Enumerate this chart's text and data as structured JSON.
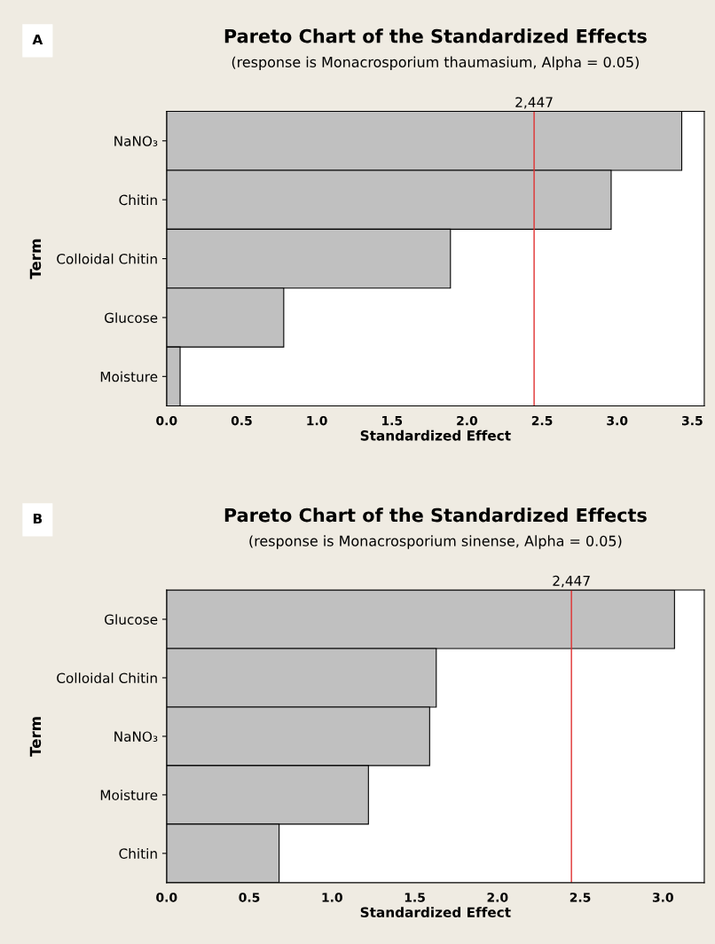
{
  "chart_data": [
    {
      "type": "bar",
      "orientation": "horizontal",
      "title": "Pareto Chart of the Standardized Effects",
      "subtitle": "(response is Monacrosporium thaumasium, Alpha = 0.05)",
      "annotations": [
        "A"
      ],
      "xlabel": "Standardized Effect",
      "ylabel": "Term",
      "categories": [
        "NaNO₃",
        "Chitin",
        "Colloidal Chitin",
        "Glucose",
        "Moisture"
      ],
      "series": [
        {
          "color": "#c0c0c0",
          "values": [
            3.43,
            2.96,
            1.89,
            0.78,
            0.09
          ]
        }
      ],
      "xlim": [
        0,
        3.58
      ],
      "xticks": [
        {
          "value": 0,
          "label": "0.0"
        },
        {
          "value": 0.5,
          "label": "0.5"
        },
        {
          "value": 1,
          "label": "1.0"
        },
        {
          "value": 1.5,
          "label": "1.5"
        },
        {
          "value": 2,
          "label": "2.0"
        },
        {
          "value": 2.5,
          "label": "2.5"
        },
        {
          "value": 3,
          "label": "3.0"
        },
        {
          "value": 3.5,
          "label": "3.5"
        }
      ],
      "ref_lines": [
        {
          "axis": "x",
          "value": 2.447,
          "label": "2,447",
          "color": "#e03030"
        }
      ],
      "grid": false,
      "legend": false
    },
    {
      "type": "bar",
      "orientation": "horizontal",
      "title": "Pareto Chart of the Standardized Effects",
      "subtitle": "(response is Monacrosporium sinense, Alpha = 0.05)",
      "annotations": [
        "B"
      ],
      "xlabel": "Standardized Effect",
      "ylabel": "Term",
      "categories": [
        "Glucose",
        "Colloidal Chitin",
        "NaNO₃",
        "Moisture",
        "Chitin"
      ],
      "series": [
        {
          "color": "#c0c0c0",
          "values": [
            3.07,
            1.63,
            1.59,
            1.22,
            0.68
          ]
        }
      ],
      "xlim": [
        0,
        3.25
      ],
      "xticks": [
        {
          "value": 0,
          "label": "0.0"
        },
        {
          "value": 0.5,
          "label": "0.5"
        },
        {
          "value": 1,
          "label": "1.0"
        },
        {
          "value": 1.5,
          "label": "1.5"
        },
        {
          "value": 2,
          "label": "2.0"
        },
        {
          "value": 2.5,
          "label": "2.5"
        },
        {
          "value": 3,
          "label": "3.0"
        }
      ],
      "ref_lines": [
        {
          "axis": "x",
          "value": 2.447,
          "label": "2,447",
          "color": "#e03030"
        }
      ],
      "grid": false,
      "legend": false
    }
  ]
}
